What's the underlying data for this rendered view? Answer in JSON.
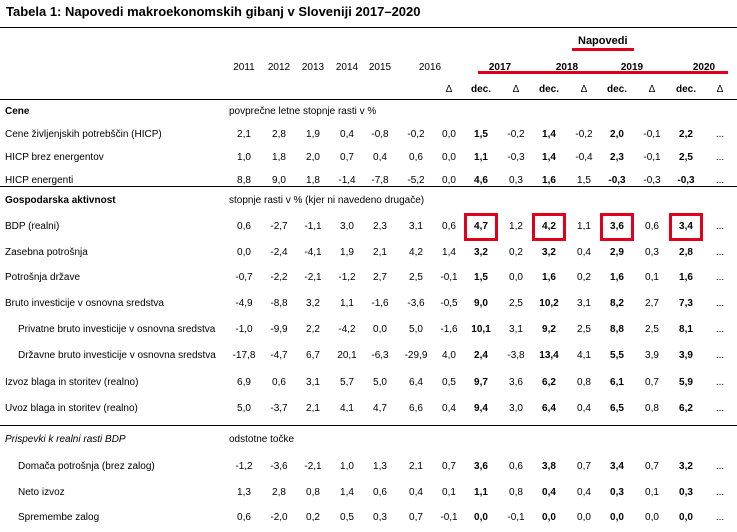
{
  "title": "Tabela 1:  Napovedi makroekonomskih gibanj v Sloveniji 2017–2020",
  "forecast_label": "Napovedi",
  "years": [
    "2011",
    "2012",
    "2013",
    "2014",
    "2015",
    "2016",
    "",
    "2017",
    "",
    "2018",
    "",
    "2019",
    "",
    "2020"
  ],
  "subheaders": [
    "",
    "",
    "",
    "",
    "",
    "",
    "Δ",
    "dec.",
    "Δ",
    "dec.",
    "Δ",
    "dec.",
    "Δ",
    "dec.",
    "Δ"
  ],
  "sections": [
    {
      "header": "Cene",
      "note": "povprečne letne stopnje rasti v %",
      "rows": [
        {
          "label": "Cene življenjskih potrebščin (HICP)",
          "values": [
            "2,1",
            "2,8",
            "1,9",
            "0,4",
            "-0,8",
            "-0,2",
            "0,0",
            "1,5",
            "-0,2",
            "1,4",
            "-0,2",
            "2,0",
            "-0,1",
            "2,2",
            "..."
          ]
        },
        {
          "label": "HICP brez energentov",
          "values": [
            "1,0",
            "1,8",
            "2,0",
            "0,7",
            "0,4",
            "0,6",
            "0,0",
            "1,1",
            "-0,3",
            "1,4",
            "-0,4",
            "2,3",
            "-0,1",
            "2,5",
            "..."
          ]
        },
        {
          "label": "HICP energenti",
          "values": [
            "8,8",
            "9,0",
            "1,8",
            "-1,4",
            "-7,8",
            "-5,2",
            "0,0",
            "4,6",
            "0,3",
            "1,6",
            "1,5",
            "-0,3",
            "-0,3",
            "-0,3",
            "..."
          ]
        }
      ]
    },
    {
      "header": "Gospodarska aktivnost",
      "note": "stopnje rasti v %  (kjer ni navedeno drugače)",
      "rows": [
        {
          "label": "BDP (realni)",
          "values": [
            "0,6",
            "-2,7",
            "-1,1",
            "3,0",
            "2,3",
            "3,1",
            "0,6",
            "4,7",
            "1,2",
            "4,2",
            "1,1",
            "3,6",
            "0,6",
            "3,4",
            "..."
          ]
        },
        {
          "label": "Zasebna potrošnja",
          "values": [
            "0,0",
            "-2,4",
            "-4,1",
            "1,9",
            "2,1",
            "4,2",
            "1,4",
            "3,2",
            "0,2",
            "3,2",
            "0,4",
            "2,9",
            "0,3",
            "2,8",
            "..."
          ]
        },
        {
          "label": "Potrošnja države",
          "values": [
            "-0,7",
            "-2,2",
            "-2,1",
            "-1,2",
            "2,7",
            "2,5",
            "-0,1",
            "1,5",
            "0,0",
            "1,6",
            "0,2",
            "1,6",
            "0,1",
            "1,6",
            "..."
          ]
        },
        {
          "label": "Bruto investicije v osnovna sredstva",
          "values": [
            "-4,9",
            "-8,8",
            "3,2",
            "1,1",
            "-1,6",
            "-3,6",
            "-0,5",
            "9,0",
            "2,5",
            "10,2",
            "3,1",
            "8,2",
            "2,7",
            "7,3",
            "..."
          ]
        },
        {
          "label": "Privatne bruto investicije v osnovna sredstva",
          "indent": true,
          "values": [
            "-1,0",
            "-9,9",
            "2,2",
            "-4,2",
            "0,0",
            "5,0",
            "-1,6",
            "10,1",
            "3,1",
            "9,2",
            "2,5",
            "8,8",
            "2,5",
            "8,1",
            "..."
          ]
        },
        {
          "label": "Državne bruto investicije v osnovna sredstva",
          "indent": true,
          "values": [
            "-17,8",
            "-4,7",
            "6,7",
            "20,1",
            "-6,3",
            "-29,9",
            "4,0",
            "2,4",
            "-3,8",
            "13,4",
            "4,1",
            "5,5",
            "3,9",
            "3,9",
            "..."
          ]
        },
        {
          "label": "Izvoz blaga in storitev (realno)",
          "values": [
            "6,9",
            "0,6",
            "3,1",
            "5,7",
            "5,0",
            "6,4",
            "0,5",
            "9,7",
            "3,6",
            "6,2",
            "0,8",
            "6,1",
            "0,7",
            "5,9",
            "..."
          ]
        },
        {
          "label": "Uvoz blaga in storitev (realno)",
          "values": [
            "5,0",
            "-3,7",
            "2,1",
            "4,1",
            "4,7",
            "6,6",
            "0,4",
            "9,4",
            "3,0",
            "6,4",
            "0,4",
            "6,5",
            "0,8",
            "6,2",
            "..."
          ]
        }
      ]
    },
    {
      "header": "Prispevki k realni rasti BDP",
      "note": "odstotne točke",
      "rows": [
        {
          "label": "Domača potrošnja (brez zalog)",
          "indent": true,
          "values": [
            "-1,2",
            "-3,6",
            "-2,1",
            "1,0",
            "1,3",
            "2,1",
            "0,7",
            "3,6",
            "0,6",
            "3,8",
            "0,7",
            "3,4",
            "0,7",
            "3,2",
            "..."
          ]
        },
        {
          "label": "Neto izvoz",
          "indent": true,
          "values": [
            "1,3",
            "2,8",
            "0,8",
            "1,4",
            "0,6",
            "0,4",
            "0,1",
            "1,1",
            "0,8",
            "0,4",
            "0,4",
            "0,3",
            "0,1",
            "0,3",
            "..."
          ]
        },
        {
          "label": "Spremembe zalog",
          "indent": true,
          "values": [
            "0,6",
            "-2,0",
            "0,2",
            "0,5",
            "0,3",
            "0,7",
            "-0,1",
            "0,0",
            "-0,1",
            "0,0",
            "0,0",
            "0,0",
            "0,0",
            "0,0",
            "..."
          ]
        }
      ]
    }
  ]
}
